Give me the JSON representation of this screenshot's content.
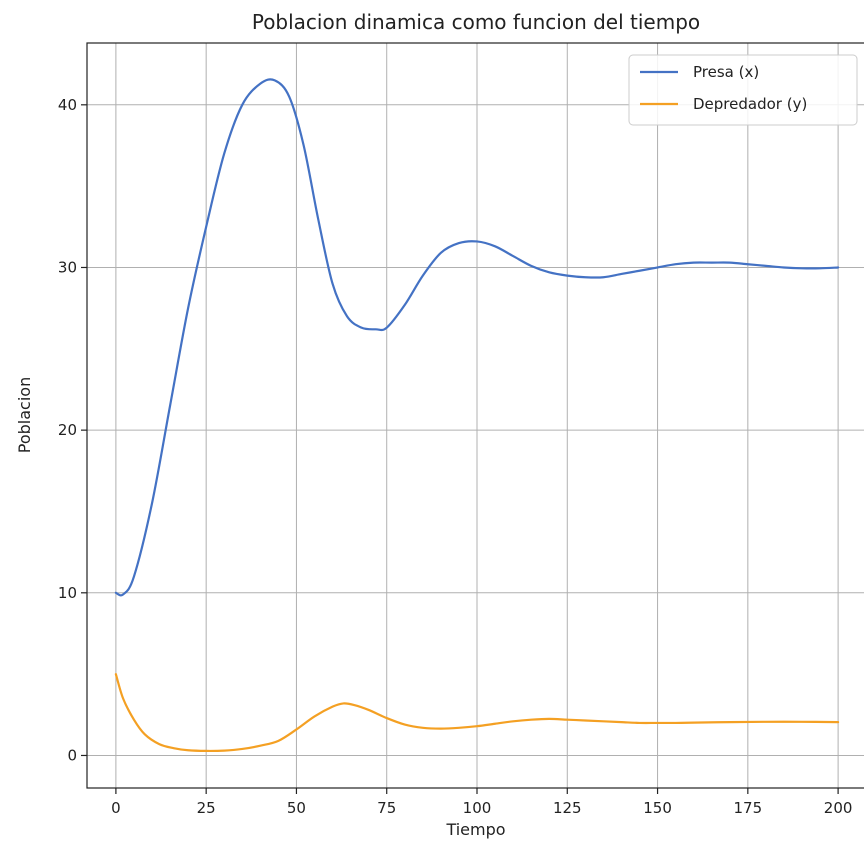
{
  "chart_data": {
    "type": "line",
    "title": "Poblacion dinamica como funcion del tiempo",
    "xlabel": "Tiempo",
    "ylabel": "Poblacion",
    "xlim": [
      -8,
      208
    ],
    "ylim": [
      -2,
      43.8
    ],
    "xticks": [
      0,
      25,
      50,
      75,
      100,
      125,
      150,
      175,
      200
    ],
    "yticks": [
      0,
      10,
      20,
      30,
      40
    ],
    "grid": true,
    "legend_position": "top-right",
    "series": [
      {
        "name": "Presa (x)",
        "color": "#4472c4",
        "x": [
          0,
          2,
          5,
          10,
          15,
          20,
          25,
          30,
          35,
          40,
          44,
          48,
          52,
          56,
          60,
          64,
          68,
          72,
          75,
          80,
          85,
          90,
          95,
          100,
          105,
          110,
          115,
          120,
          125,
          130,
          135,
          140,
          145,
          150,
          155,
          160,
          165,
          170,
          175,
          180,
          185,
          190,
          195,
          200
        ],
        "y": [
          10.0,
          9.9,
          11.0,
          15.5,
          21.5,
          27.5,
          32.5,
          37.0,
          40.0,
          41.3,
          41.5,
          40.5,
          37.5,
          33.0,
          29.0,
          27.0,
          26.3,
          26.2,
          26.3,
          27.7,
          29.5,
          30.9,
          31.5,
          31.6,
          31.3,
          30.7,
          30.1,
          29.7,
          29.5,
          29.4,
          29.4,
          29.6,
          29.8,
          30.0,
          30.2,
          30.3,
          30.3,
          30.3,
          30.2,
          30.1,
          30.0,
          29.95,
          29.95,
          30.0
        ]
      },
      {
        "name": "Depredador (y)",
        "color": "#f4a023",
        "x": [
          0,
          2,
          5,
          8,
          12,
          16,
          20,
          25,
          30,
          35,
          40,
          45,
          50,
          55,
          60,
          63,
          66,
          70,
          75,
          80,
          85,
          90,
          95,
          100,
          105,
          110,
          115,
          120,
          125,
          130,
          135,
          140,
          145,
          150,
          155,
          160,
          170,
          180,
          190,
          200
        ],
        "y": [
          5.0,
          3.5,
          2.2,
          1.3,
          0.7,
          0.45,
          0.32,
          0.28,
          0.3,
          0.4,
          0.6,
          0.9,
          1.6,
          2.4,
          3.0,
          3.2,
          3.1,
          2.8,
          2.3,
          1.9,
          1.7,
          1.65,
          1.7,
          1.8,
          1.95,
          2.1,
          2.2,
          2.25,
          2.2,
          2.15,
          2.1,
          2.05,
          2.0,
          2.0,
          2.0,
          2.02,
          2.05,
          2.07,
          2.07,
          2.05
        ]
      }
    ]
  }
}
